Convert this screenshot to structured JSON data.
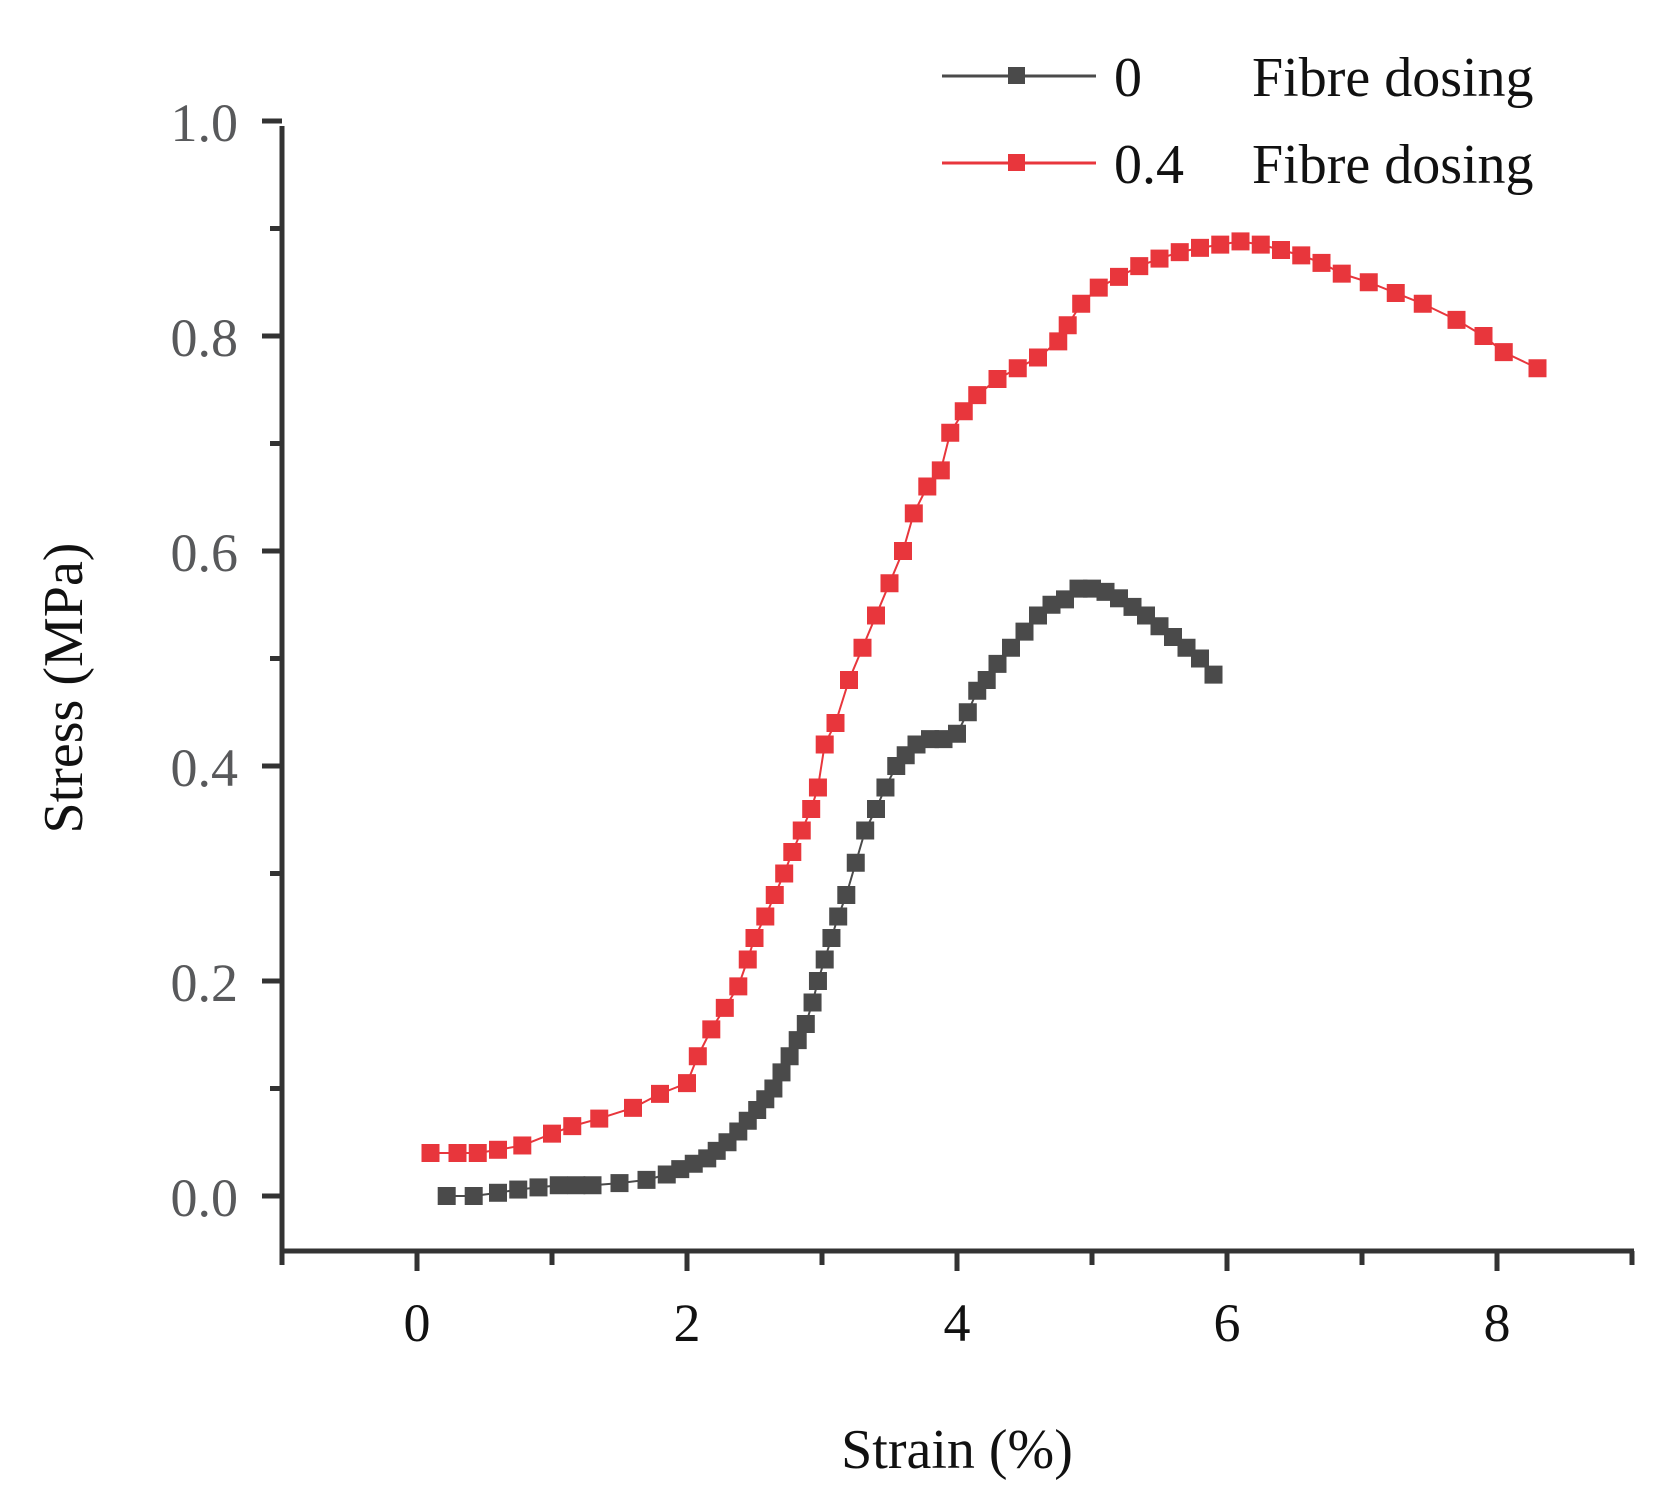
{
  "chart_data": {
    "type": "scatter",
    "title": "",
    "xlabel": "Strain (%)",
    "ylabel": "Stress (MPa)",
    "xlim": [
      -1,
      9
    ],
    "ylim": [
      -0.05,
      1.0
    ],
    "x_ticks": [
      "0",
      "2",
      "4",
      "6",
      "8"
    ],
    "y_ticks": [
      "0.0",
      "0.2",
      "0.4",
      "0.6",
      "0.8",
      "1.0"
    ],
    "legend_position": "top-right",
    "series": [
      {
        "name": "Fibre dosing",
        "dosing": "0",
        "color": "#4a4a4a",
        "x": [
          0.22,
          0.42,
          0.6,
          0.75,
          0.9,
          1.05,
          1.18,
          1.3,
          1.5,
          1.7,
          1.85,
          1.95,
          2.05,
          2.15,
          2.22,
          2.3,
          2.38,
          2.45,
          2.52,
          2.58,
          2.64,
          2.7,
          2.76,
          2.82,
          2.88,
          2.93,
          2.97,
          3.02,
          3.07,
          3.12,
          3.18,
          3.25,
          3.32,
          3.4,
          3.47,
          3.55,
          3.62,
          3.7,
          3.8,
          3.9,
          4.0,
          4.08,
          4.15,
          4.22,
          4.3,
          4.4,
          4.5,
          4.6,
          4.7,
          4.8,
          4.9,
          5.0,
          5.1,
          5.2,
          5.3,
          5.4,
          5.5,
          5.6,
          5.7,
          5.8,
          5.9
        ],
        "y": [
          0.0,
          0.0,
          0.003,
          0.006,
          0.008,
          0.01,
          0.01,
          0.01,
          0.012,
          0.015,
          0.02,
          0.025,
          0.03,
          0.035,
          0.042,
          0.05,
          0.06,
          0.07,
          0.08,
          0.09,
          0.1,
          0.115,
          0.13,
          0.145,
          0.16,
          0.18,
          0.2,
          0.22,
          0.24,
          0.26,
          0.28,
          0.31,
          0.34,
          0.36,
          0.38,
          0.4,
          0.41,
          0.42,
          0.425,
          0.425,
          0.43,
          0.45,
          0.47,
          0.48,
          0.495,
          0.51,
          0.525,
          0.54,
          0.55,
          0.555,
          0.565,
          0.565,
          0.562,
          0.556,
          0.548,
          0.54,
          0.53,
          0.52,
          0.51,
          0.5,
          0.485
        ]
      },
      {
        "name": "Fibre dosing",
        "dosing": "0.4",
        "color": "#e8363c",
        "x": [
          0.1,
          0.3,
          0.45,
          0.6,
          0.78,
          1.0,
          1.15,
          1.35,
          1.6,
          1.8,
          2.0,
          2.08,
          2.18,
          2.28,
          2.38,
          2.45,
          2.5,
          2.58,
          2.65,
          2.72,
          2.78,
          2.85,
          2.92,
          2.97,
          3.02,
          3.1,
          3.2,
          3.3,
          3.4,
          3.5,
          3.6,
          3.68,
          3.78,
          3.88,
          3.95,
          4.05,
          4.15,
          4.3,
          4.45,
          4.6,
          4.75,
          4.82,
          4.92,
          5.05,
          5.2,
          5.35,
          5.5,
          5.65,
          5.8,
          5.95,
          6.1,
          6.25,
          6.4,
          6.55,
          6.7,
          6.85,
          7.05,
          7.25,
          7.45,
          7.7,
          7.9,
          8.05,
          8.3
        ],
        "y": [
          0.04,
          0.04,
          0.04,
          0.043,
          0.047,
          0.058,
          0.065,
          0.072,
          0.082,
          0.095,
          0.105,
          0.13,
          0.155,
          0.175,
          0.195,
          0.22,
          0.24,
          0.26,
          0.28,
          0.3,
          0.32,
          0.34,
          0.36,
          0.38,
          0.42,
          0.44,
          0.48,
          0.51,
          0.54,
          0.57,
          0.6,
          0.635,
          0.66,
          0.675,
          0.71,
          0.73,
          0.745,
          0.76,
          0.77,
          0.78,
          0.795,
          0.81,
          0.83,
          0.845,
          0.855,
          0.865,
          0.872,
          0.878,
          0.882,
          0.885,
          0.888,
          0.885,
          0.88,
          0.875,
          0.868,
          0.858,
          0.85,
          0.84,
          0.83,
          0.815,
          0.8,
          0.785,
          0.77
        ]
      }
    ]
  }
}
